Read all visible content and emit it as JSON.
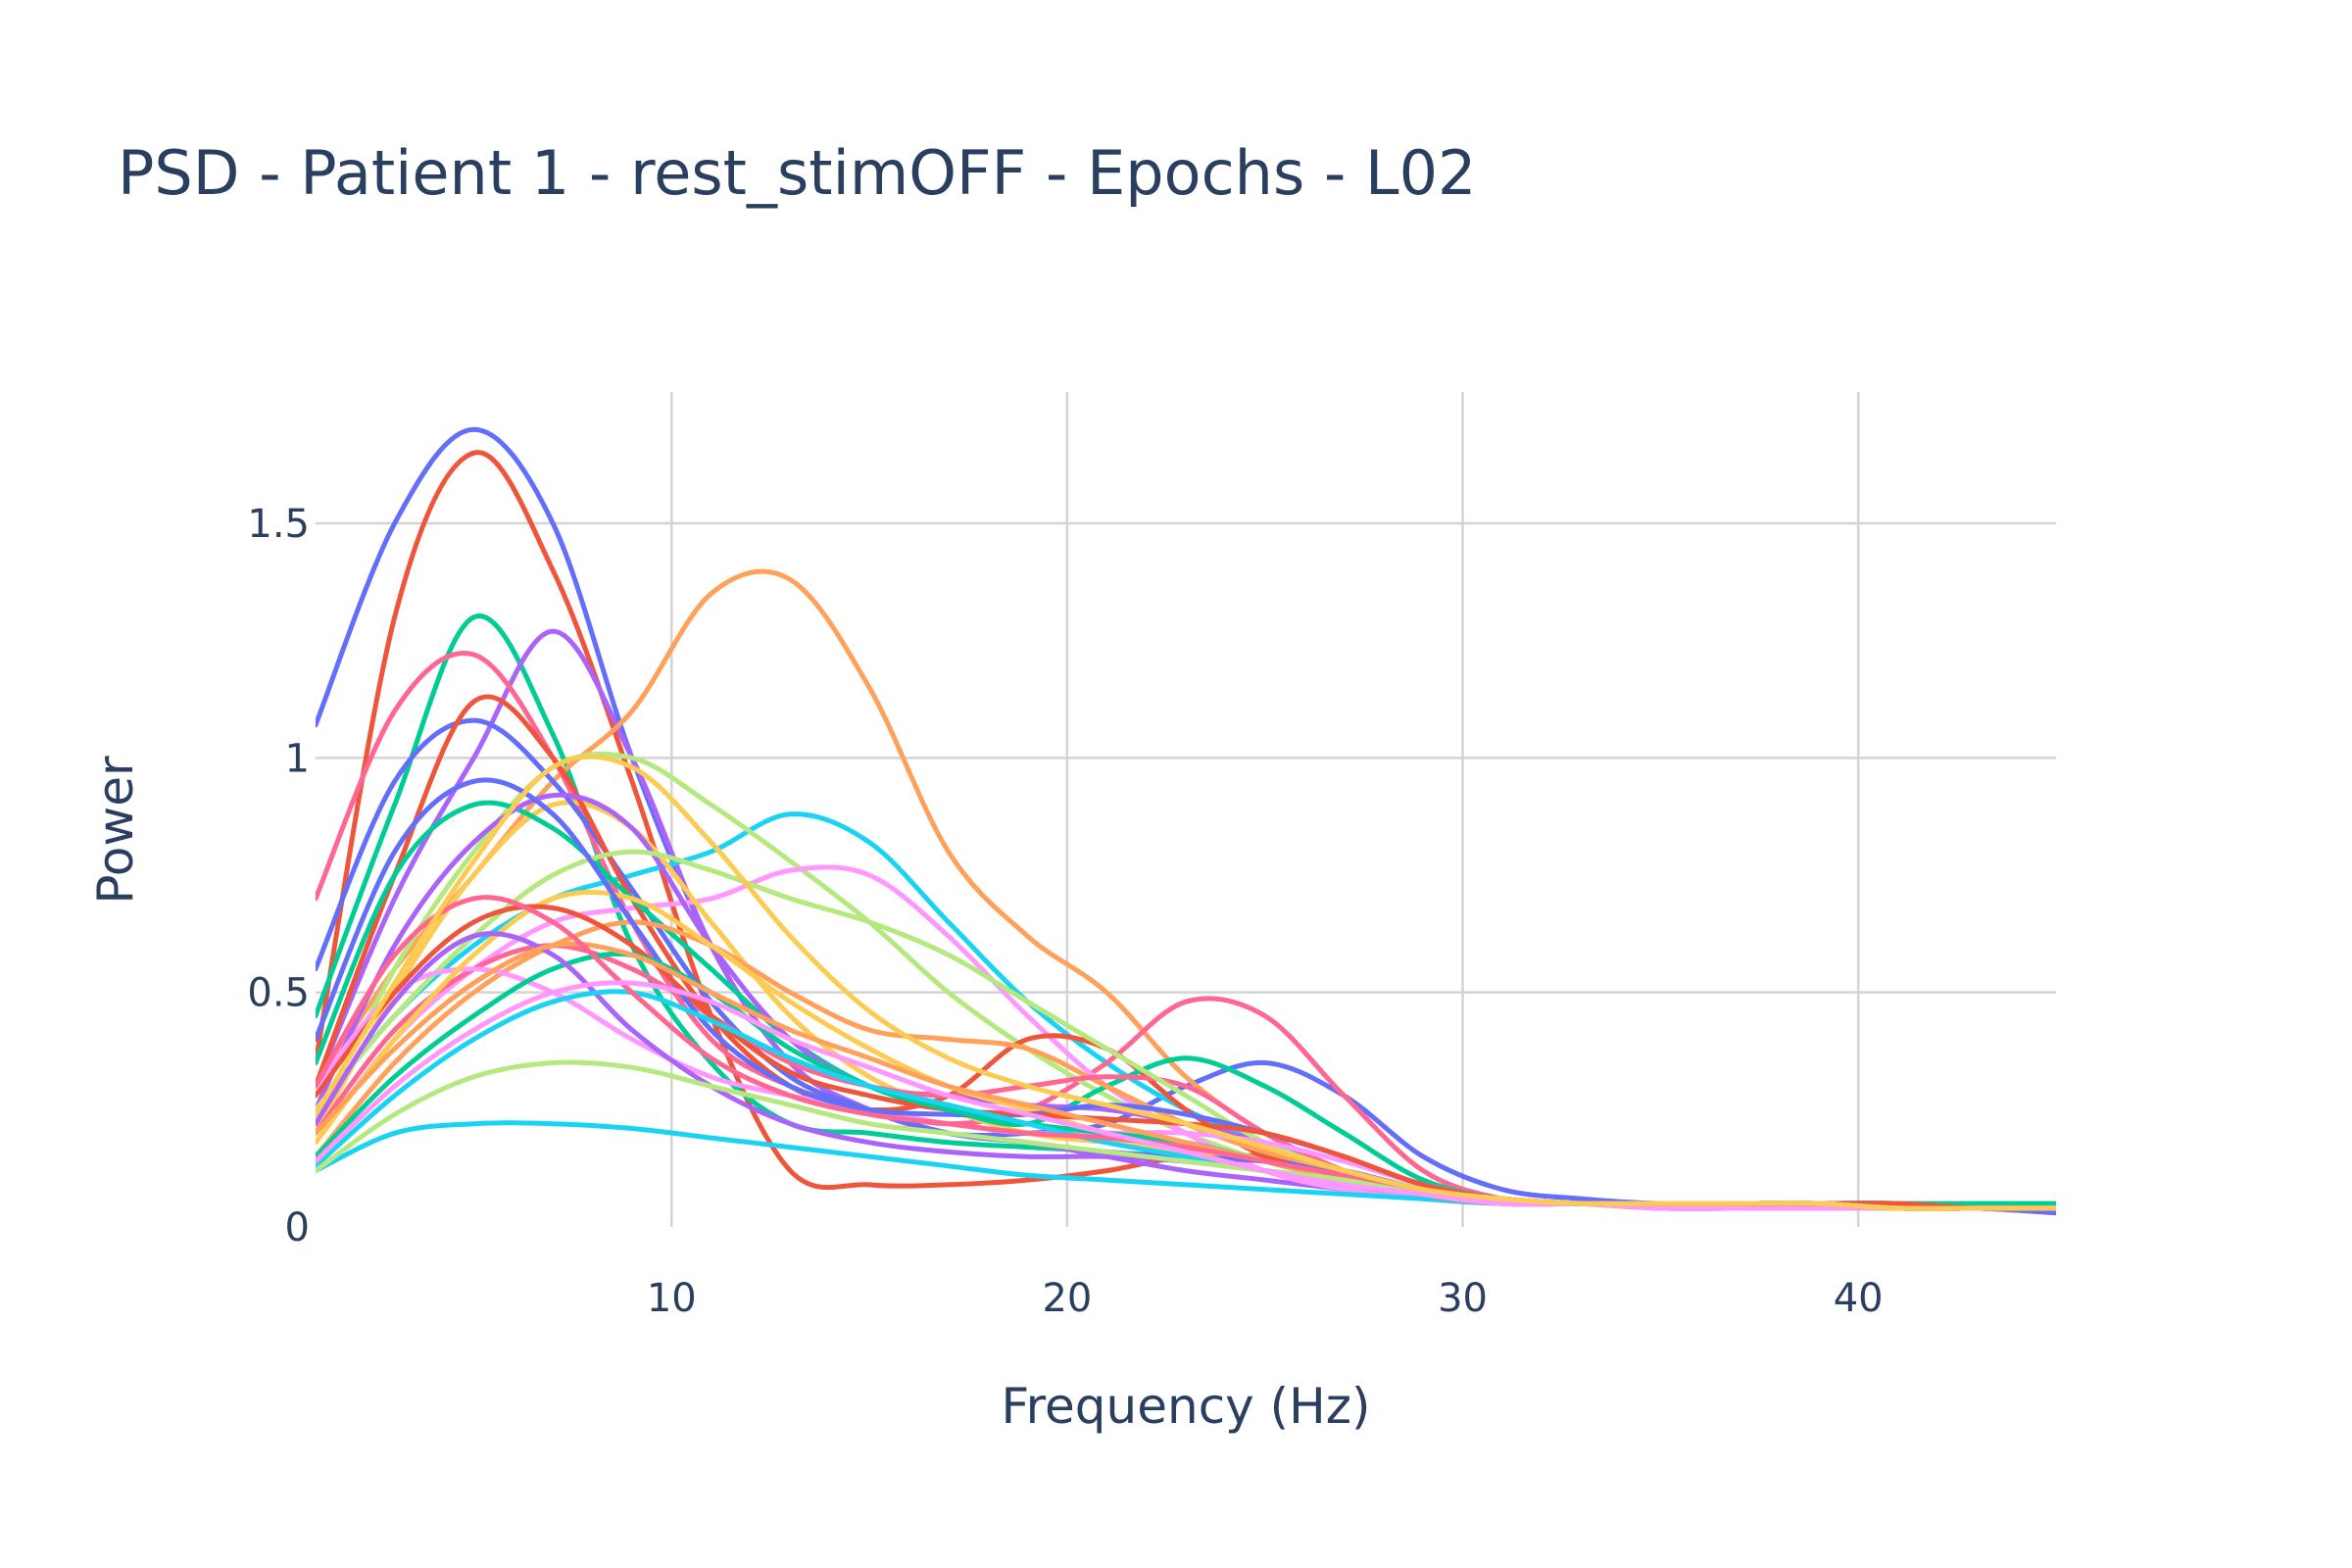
{
  "colors": [
    "#636efa",
    "#EF553B",
    "#00cc96",
    "#ab63fa",
    "#FFA15A",
    "#19d3f3",
    "#FF6692",
    "#B6E880",
    "#FF97FF",
    "#FECB52"
  ],
  "chart_data": {
    "type": "line",
    "title": "PSD - Patient 1 - rest_stimOFF - Epochs - L02",
    "xlabel": "Frequency (Hz)",
    "ylabel": "Power",
    "xlim": [
      1,
      45
    ],
    "ylim": [
      0,
      1.78
    ],
    "xticks": [
      10,
      20,
      30,
      40
    ],
    "xtick_labels": [
      "10",
      "20",
      "30",
      "40"
    ],
    "yticks": [
      0,
      0.5,
      1,
      1.5
    ],
    "ytick_labels": [
      "0",
      "0.5",
      "1",
      "1.5"
    ],
    "grid": true,
    "legend": "none",
    "x": [
      1,
      3,
      5,
      7,
      9,
      11,
      13,
      15,
      17,
      19,
      21,
      23,
      25,
      27,
      29,
      31,
      33,
      35,
      37,
      39,
      41,
      43,
      45
    ],
    "series": [
      {
        "values": [
          1.07,
          1.5,
          1.7,
          1.5,
          1.0,
          0.6,
          0.35,
          0.25,
          0.2,
          0.2,
          0.22,
          0.3,
          0.35,
          0.28,
          0.15,
          0.08,
          0.06,
          0.05,
          0.05,
          0.05,
          0.04,
          0.04,
          0.04
        ]
      },
      {
        "values": [
          0.35,
          1.3,
          1.65,
          1.4,
          0.95,
          0.45,
          0.12,
          0.09,
          0.09,
          0.1,
          0.12,
          0.15,
          0.15,
          0.12,
          0.08,
          0.06,
          0.05,
          0.05,
          0.05,
          0.05,
          0.04,
          0.04,
          0.03
        ]
      },
      {
        "values": [
          0.45,
          0.9,
          1.3,
          1.05,
          0.6,
          0.35,
          0.22,
          0.2,
          0.18,
          0.17,
          0.16,
          0.14,
          0.12,
          0.1,
          0.08,
          0.06,
          0.05,
          0.05,
          0.05,
          0.05,
          0.05,
          0.05,
          0.05
        ]
      },
      {
        "values": [
          0.3,
          0.7,
          1.0,
          1.27,
          1.0,
          0.6,
          0.35,
          0.25,
          0.2,
          0.18,
          0.15,
          0.12,
          0.1,
          0.08,
          0.06,
          0.05,
          0.05,
          0.04,
          0.04,
          0.04,
          0.04,
          0.04,
          0.04
        ]
      },
      {
        "values": [
          0.3,
          0.55,
          0.75,
          0.95,
          1.1,
          1.35,
          1.38,
          1.15,
          0.8,
          0.62,
          0.5,
          0.32,
          0.2,
          0.12,
          0.08,
          0.06,
          0.05,
          0.05,
          0.05,
          0.05,
          0.05,
          0.04,
          0.04
        ]
      },
      {
        "values": [
          0.25,
          0.45,
          0.6,
          0.7,
          0.75,
          0.8,
          0.88,
          0.82,
          0.65,
          0.48,
          0.35,
          0.25,
          0.18,
          0.12,
          0.08,
          0.06,
          0.05,
          0.05,
          0.05,
          0.05,
          0.05,
          0.04,
          0.04
        ]
      },
      {
        "values": [
          0.7,
          1.1,
          1.22,
          1.0,
          0.65,
          0.4,
          0.3,
          0.25,
          0.22,
          0.25,
          0.35,
          0.48,
          0.45,
          0.28,
          0.12,
          0.06,
          0.05,
          0.04,
          0.04,
          0.04,
          0.04,
          0.04,
          0.04
        ]
      },
      {
        "values": [
          0.22,
          0.55,
          0.8,
          0.98,
          1.0,
          0.9,
          0.78,
          0.65,
          0.5,
          0.38,
          0.28,
          0.2,
          0.14,
          0.1,
          0.07,
          0.05,
          0.05,
          0.04,
          0.04,
          0.04,
          0.04,
          0.04,
          0.04
        ]
      },
      {
        "values": [
          0.18,
          0.4,
          0.55,
          0.65,
          0.68,
          0.7,
          0.76,
          0.75,
          0.62,
          0.45,
          0.3,
          0.2,
          0.12,
          0.08,
          0.06,
          0.05,
          0.05,
          0.04,
          0.04,
          0.04,
          0.04,
          0.04,
          0.04
        ]
      },
      {
        "values": [
          0.2,
          0.5,
          0.75,
          0.9,
          0.85,
          0.65,
          0.45,
          0.32,
          0.25,
          0.2,
          0.18,
          0.16,
          0.14,
          0.11,
          0.08,
          0.06,
          0.05,
          0.05,
          0.05,
          0.05,
          0.04,
          0.04,
          0.04
        ]
      },
      {
        "values": [
          0.55,
          0.95,
          1.08,
          0.95,
          0.72,
          0.48,
          0.32,
          0.25,
          0.2,
          0.18,
          0.16,
          0.15,
          0.14,
          0.12,
          0.08,
          0.06,
          0.05,
          0.05,
          0.05,
          0.05,
          0.04,
          0.04,
          0.03
        ]
      },
      {
        "values": [
          0.3,
          0.75,
          1.12,
          1.0,
          0.7,
          0.45,
          0.3,
          0.25,
          0.28,
          0.4,
          0.38,
          0.25,
          0.15,
          0.1,
          0.07,
          0.05,
          0.05,
          0.05,
          0.05,
          0.05,
          0.04,
          0.04,
          0.04
        ]
      },
      {
        "values": [
          0.35,
          0.75,
          0.9,
          0.85,
          0.7,
          0.55,
          0.4,
          0.3,
          0.25,
          0.22,
          0.3,
          0.36,
          0.3,
          0.2,
          0.1,
          0.06,
          0.05,
          0.05,
          0.05,
          0.05,
          0.05,
          0.04,
          0.04
        ]
      },
      {
        "values": [
          0.25,
          0.6,
          0.82,
          0.92,
          0.85,
          0.6,
          0.4,
          0.3,
          0.28,
          0.26,
          0.25,
          0.22,
          0.18,
          0.12,
          0.08,
          0.06,
          0.05,
          0.05,
          0.05,
          0.05,
          0.04,
          0.04,
          0.04
        ]
      },
      {
        "values": [
          0.15,
          0.35,
          0.5,
          0.6,
          0.65,
          0.6,
          0.5,
          0.42,
          0.4,
          0.38,
          0.3,
          0.22,
          0.16,
          0.12,
          0.08,
          0.06,
          0.05,
          0.05,
          0.05,
          0.05,
          0.04,
          0.04,
          0.04
        ]
      },
      {
        "values": [
          0.12,
          0.2,
          0.22,
          0.22,
          0.21,
          0.19,
          0.17,
          0.15,
          0.13,
          0.11,
          0.1,
          0.09,
          0.08,
          0.07,
          0.06,
          0.05,
          0.05,
          0.05,
          0.05,
          0.05,
          0.04,
          0.04,
          0.04
        ]
      },
      {
        "values": [
          0.2,
          0.42,
          0.55,
          0.6,
          0.55,
          0.45,
          0.35,
          0.3,
          0.28,
          0.3,
          0.32,
          0.3,
          0.2,
          0.12,
          0.07,
          0.05,
          0.05,
          0.05,
          0.05,
          0.05,
          0.04,
          0.04,
          0.04
        ]
      },
      {
        "values": [
          0.25,
          0.45,
          0.62,
          0.75,
          0.8,
          0.76,
          0.7,
          0.65,
          0.58,
          0.48,
          0.38,
          0.28,
          0.18,
          0.12,
          0.08,
          0.06,
          0.05,
          0.05,
          0.05,
          0.05,
          0.04,
          0.04,
          0.04
        ]
      },
      {
        "values": [
          0.3,
          0.5,
          0.55,
          0.5,
          0.4,
          0.32,
          0.28,
          0.25,
          0.22,
          0.2,
          0.2,
          0.2,
          0.18,
          0.14,
          0.09,
          0.06,
          0.05,
          0.05,
          0.05,
          0.05,
          0.04,
          0.04,
          0.04
        ]
      },
      {
        "values": [
          0.18,
          0.4,
          0.58,
          0.7,
          0.7,
          0.6,
          0.48,
          0.38,
          0.3,
          0.25,
          0.2,
          0.16,
          0.12,
          0.09,
          0.07,
          0.05,
          0.05,
          0.05,
          0.05,
          0.05,
          0.04,
          0.04,
          0.04
        ]
      },
      {
        "values": [
          0.4,
          0.8,
          0.95,
          0.88,
          0.65,
          0.42,
          0.3,
          0.25,
          0.24,
          0.24,
          0.26,
          0.24,
          0.2,
          0.15,
          0.09,
          0.06,
          0.05,
          0.05,
          0.05,
          0.05,
          0.04,
          0.04,
          0.04
        ]
      },
      {
        "values": [
          0.28,
          0.5,
          0.65,
          0.68,
          0.6,
          0.45,
          0.33,
          0.28,
          0.25,
          0.24,
          0.23,
          0.22,
          0.2,
          0.15,
          0.09,
          0.06,
          0.05,
          0.05,
          0.05,
          0.05,
          0.05,
          0.04,
          0.04
        ]
      },
      {
        "values": [
          0.15,
          0.32,
          0.45,
          0.55,
          0.58,
          0.5,
          0.38,
          0.3,
          0.25,
          0.22,
          0.2,
          0.18,
          0.14,
          0.1,
          0.07,
          0.05,
          0.05,
          0.05,
          0.05,
          0.05,
          0.04,
          0.04,
          0.04
        ]
      },
      {
        "values": [
          0.22,
          0.48,
          0.62,
          0.58,
          0.42,
          0.3,
          0.22,
          0.18,
          0.16,
          0.15,
          0.15,
          0.14,
          0.12,
          0.1,
          0.07,
          0.05,
          0.05,
          0.05,
          0.05,
          0.05,
          0.04,
          0.04,
          0.04
        ]
      },
      {
        "values": [
          0.2,
          0.38,
          0.52,
          0.6,
          0.58,
          0.5,
          0.42,
          0.36,
          0.3,
          0.26,
          0.22,
          0.18,
          0.14,
          0.1,
          0.07,
          0.05,
          0.05,
          0.05,
          0.05,
          0.05,
          0.04,
          0.04,
          0.04
        ]
      },
      {
        "values": [
          0.13,
          0.28,
          0.4,
          0.48,
          0.5,
          0.44,
          0.36,
          0.3,
          0.26,
          0.22,
          0.18,
          0.15,
          0.12,
          0.09,
          0.07,
          0.05,
          0.05,
          0.05,
          0.05,
          0.05,
          0.04,
          0.04,
          0.04
        ]
      },
      {
        "values": [
          0.3,
          0.58,
          0.7,
          0.65,
          0.5,
          0.36,
          0.28,
          0.24,
          0.22,
          0.2,
          0.19,
          0.17,
          0.14,
          0.11,
          0.08,
          0.06,
          0.05,
          0.05,
          0.05,
          0.05,
          0.04,
          0.04,
          0.04
        ]
      },
      {
        "values": [
          0.12,
          0.24,
          0.32,
          0.35,
          0.34,
          0.3,
          0.26,
          0.22,
          0.2,
          0.18,
          0.16,
          0.14,
          0.12,
          0.1,
          0.07,
          0.05,
          0.05,
          0.05,
          0.05,
          0.05,
          0.04,
          0.04,
          0.04
        ]
      },
      {
        "values": [
          0.14,
          0.3,
          0.42,
          0.5,
          0.52,
          0.48,
          0.4,
          0.34,
          0.28,
          0.24,
          0.2,
          0.16,
          0.12,
          0.09,
          0.07,
          0.05,
          0.05,
          0.05,
          0.05,
          0.05,
          0.04,
          0.04,
          0.04
        ]
      },
      {
        "values": [
          0.24,
          0.52,
          0.78,
          0.98,
          0.98,
          0.82,
          0.62,
          0.46,
          0.36,
          0.3,
          0.26,
          0.22,
          0.17,
          0.12,
          0.08,
          0.06,
          0.05,
          0.05,
          0.05,
          0.05,
          0.04,
          0.04,
          0.04
        ]
      }
    ]
  }
}
